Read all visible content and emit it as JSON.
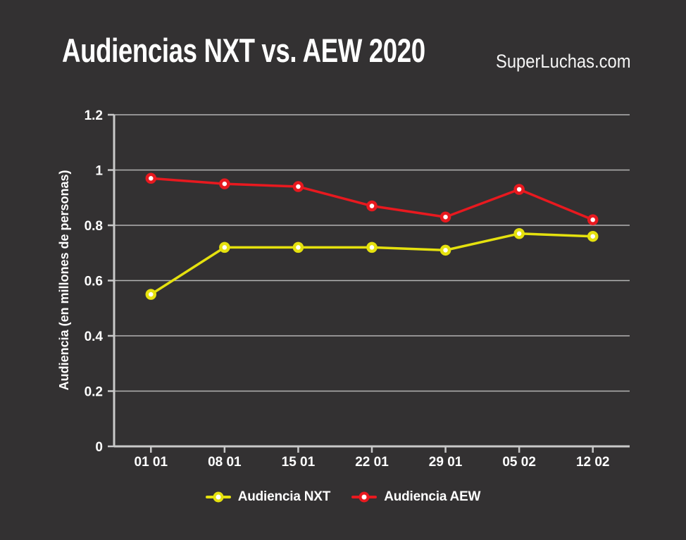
{
  "page": {
    "background": "#333132",
    "watermark": "SuperLuchas.com"
  },
  "chart_data": {
    "type": "line",
    "title": "Audiencias NXT vs. AEW 2020",
    "categories": [
      "01 01",
      "08 01",
      "15 01",
      "22 01",
      "29 01",
      "05 02",
      "12 02"
    ],
    "series": [
      {
        "name": "Audiencia NXT",
        "color": "#e5e10e",
        "values": [
          0.55,
          0.72,
          0.72,
          0.72,
          0.71,
          0.77,
          0.76
        ]
      },
      {
        "name": "Audiencia AEW",
        "color": "#e8191f",
        "values": [
          0.97,
          0.95,
          0.94,
          0.87,
          0.83,
          0.93,
          0.82
        ]
      }
    ],
    "xlabel": "",
    "ylabel": "Audiencia (en millones de personas)",
    "ylim": [
      0,
      1.2
    ],
    "yticks": [
      0,
      0.2,
      0.4,
      0.6,
      0.8,
      1,
      1.2
    ],
    "ytick_labels": [
      "0",
      "0.2",
      "0.4",
      "0.6",
      "0.8",
      "1",
      "1.2"
    ],
    "grid": true,
    "legend_position": "bottom",
    "marker_style": "circle-white-fill",
    "colors": {
      "grid": "#b3b3b3",
      "axis": "#c9c9c9",
      "text": "#ffffff"
    }
  }
}
